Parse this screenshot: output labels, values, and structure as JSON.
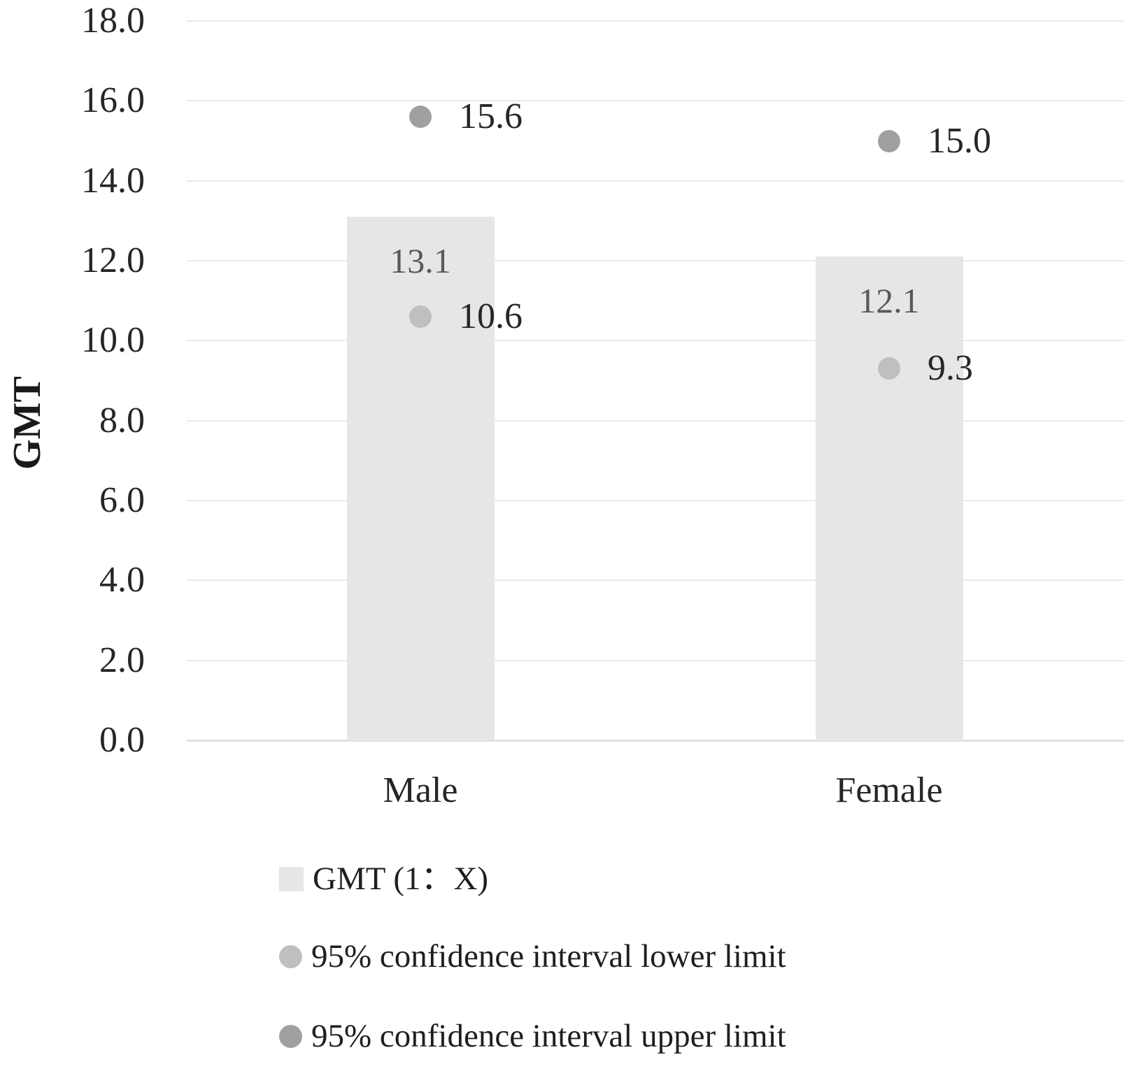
{
  "chart_data": {
    "type": "bar",
    "title": "",
    "xlabel": "",
    "ylabel": "GMT",
    "categories": [
      "Male",
      "Female"
    ],
    "series": [
      {
        "name": "GMT (1：X)",
        "marker": "square",
        "render": "bar",
        "values": [
          13.1,
          12.1
        ],
        "labels": [
          "13.1",
          "12.1"
        ],
        "color": "#e6e6e6",
        "label_color": "#595959"
      },
      {
        "name": "95% confidence interval lower limit",
        "marker": "circle",
        "render": "point",
        "values": [
          10.6,
          9.3
        ],
        "labels": [
          "10.6",
          "9.3"
        ],
        "color": "#bfbfbf",
        "label_color": "#262626"
      },
      {
        "name": "95% confidence interval upper limit",
        "marker": "circle",
        "render": "point",
        "values": [
          15.6,
          15.0
        ],
        "labels": [
          "15.6",
          "15.0"
        ],
        "color": "#a0a0a0",
        "label_color": "#262626"
      }
    ],
    "ylim": [
      0,
      18
    ],
    "ytick_step": 2,
    "ytick_labels": [
      "0.0",
      "2.0",
      "4.0",
      "6.0",
      "8.0",
      "10.0",
      "12.0",
      "14.0",
      "16.0",
      "18.0"
    ],
    "grid": true,
    "gridline_color": "#e9e9e9",
    "axis_line_color": "#e0e0e0",
    "legend_position": "bottom-left"
  }
}
